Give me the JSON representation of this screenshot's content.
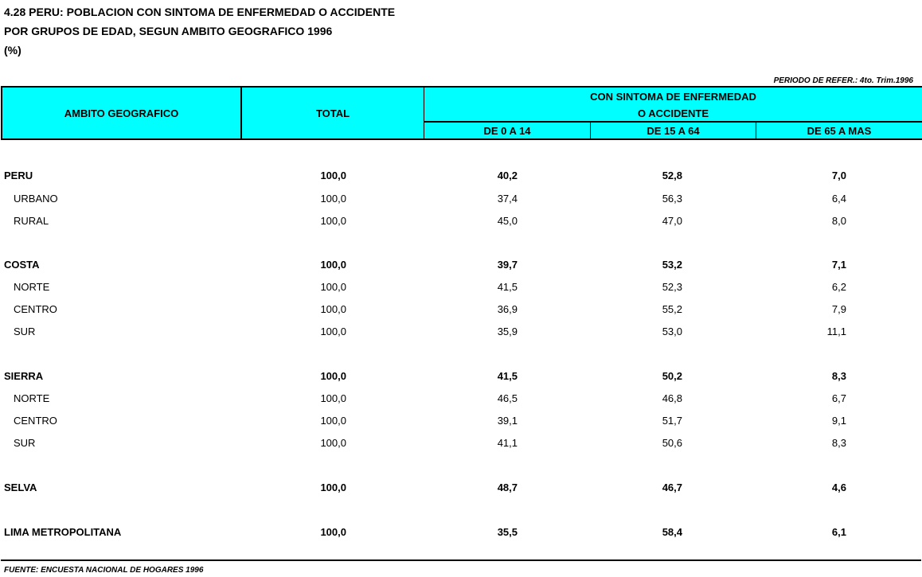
{
  "title": {
    "line1": "4.28  PERU:  POBLACION CON SINTOMA DE ENFERMEDAD O ACCIDENTE",
    "line2": "POR GRUPOS DE EDAD, SEGUN AMBITO GEOGRAFICO 1996",
    "line3": "(%)"
  },
  "reference": "PERIODO DE REFER.: 4to. Trim.1996",
  "header": {
    "col1": "AMBITO GEOGRAFICO",
    "col2": "TOTAL",
    "group_line1": "CON SINTOMA DE ENFERMEDAD",
    "group_line2": "O ACCIDENTE",
    "sub": [
      "DE 0 A 14",
      "DE 15 A 64",
      "DE 65 A MAS"
    ],
    "color": "#00ffff"
  },
  "rows": [
    {
      "label": "PERU",
      "bold": true,
      "values": [
        "100,0",
        "40,2",
        "52,8",
        "7,0"
      ]
    },
    {
      "label": "URBANO",
      "bold": false,
      "values": [
        "100,0",
        "37,4",
        "56,3",
        "6,4"
      ]
    },
    {
      "label": "RURAL",
      "bold": false,
      "values": [
        "100,0",
        "45,0",
        "47,0",
        "8,0"
      ]
    },
    {
      "label": "COSTA",
      "bold": true,
      "values": [
        "100,0",
        "39,7",
        "53,2",
        "7,1"
      ]
    },
    {
      "label": "NORTE",
      "bold": false,
      "values": [
        "100,0",
        "41,5",
        "52,3",
        "6,2"
      ]
    },
    {
      "label": "CENTRO",
      "bold": false,
      "values": [
        "100,0",
        "36,9",
        "55,2",
        "7,9"
      ]
    },
    {
      "label": "SUR",
      "bold": false,
      "values": [
        "100,0",
        "35,9",
        "53,0",
        "11,1"
      ]
    },
    {
      "label": "SIERRA",
      "bold": true,
      "values": [
        "100,0",
        "41,5",
        "50,2",
        "8,3"
      ]
    },
    {
      "label": "NORTE",
      "bold": false,
      "values": [
        "100,0",
        "46,5",
        "46,8",
        "6,7"
      ]
    },
    {
      "label": "CENTRO",
      "bold": false,
      "values": [
        "100,0",
        "39,1",
        "51,7",
        "9,1"
      ]
    },
    {
      "label": "SUR",
      "bold": false,
      "values": [
        "100,0",
        "41,1",
        "50,6",
        "8,3"
      ]
    },
    {
      "label": "SELVA",
      "bold": true,
      "values": [
        "100,0",
        "48,7",
        "46,7",
        "4,6"
      ]
    },
    {
      "label": "LIMA METROPOLITANA",
      "bold": true,
      "values": [
        "100,0",
        "35,5",
        "58,4",
        "6,1"
      ]
    }
  ],
  "footer": "FUENTE: ENCUESTA NACIONAL DE HOGARES 1996"
}
